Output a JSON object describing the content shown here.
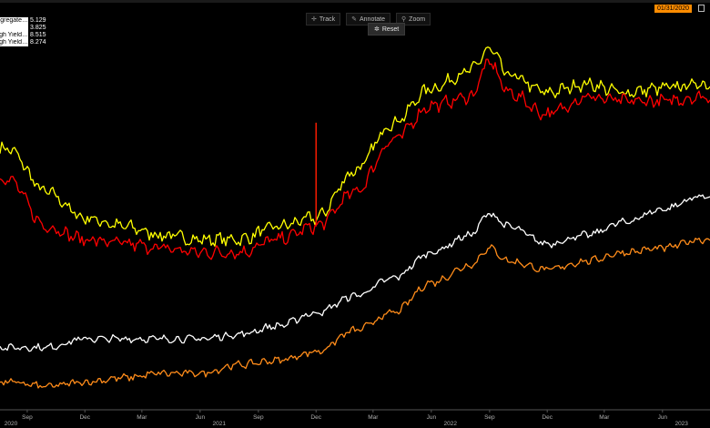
{
  "toolbar": {
    "track_label": "Track",
    "annotate_label": "Annotate",
    "zoom_label": "Zoom",
    "reset_label": "Reset",
    "track_icon": "crosshair-icon",
    "annotate_icon": "pencil-icon",
    "zoom_icon": "magnifier-icon",
    "reset_icon": "gear-icon"
  },
  "date_range": "01/31/2020",
  "legend": [
    {
      "name": "…ggregate",
      "value": "5.129",
      "color": "#ffffff"
    },
    {
      "name": "",
      "value": "3.825",
      "color": "#ffffff"
    },
    {
      "name": "…High Yield",
      "value": "8.515",
      "color": "#ffffff"
    },
    {
      "name": "…High Yield",
      "value": "8.274",
      "color": "#ffffff"
    }
  ],
  "colors": {
    "background": "#000000",
    "yellow": "#ffff00",
    "red": "#ff0000",
    "white": "#ffffff",
    "orange": "#ff8c1a",
    "axis": "#555555",
    "tick_text": "#b0b0b0"
  },
  "chart_data": {
    "type": "line",
    "x_ticks": [
      "Sep",
      "Dec",
      "Mar",
      "Jun",
      "Sep",
      "Dec",
      "Mar",
      "Jun",
      "Sep",
      "Dec",
      "Mar",
      "Jun"
    ],
    "year_labels": [
      "2020",
      "2021",
      "2022",
      "2023"
    ],
    "x": [
      "2020-08",
      "2020-10",
      "2020-12",
      "2021-02",
      "2021-04",
      "2021-06",
      "2021-08",
      "2021-10",
      "2021-12",
      "2022-02",
      "2022-04",
      "2022-06",
      "2022-08",
      "2022-09",
      "2022-10",
      "2022-12",
      "2023-02",
      "2023-04",
      "2023-06",
      "2023-08"
    ],
    "ylim": [
      2.0,
      10.6
    ],
    "grid": false,
    "series": [
      {
        "color_key": "yellow",
        "values": [
          8.0,
          7.0,
          6.4,
          6.2,
          6.0,
          5.9,
          5.9,
          6.2,
          6.4,
          7.5,
          8.6,
          9.4,
          9.8,
          10.3,
          9.7,
          9.3,
          9.5,
          9.3,
          9.4,
          9.5
        ],
        "spikes": [
          {
            "x": "2021-12",
            "y": 8.6
          }
        ]
      },
      {
        "color_key": "red",
        "values": [
          7.3,
          6.2,
          5.9,
          5.8,
          5.7,
          5.6,
          5.6,
          5.9,
          6.2,
          7.0,
          8.2,
          9.0,
          9.2,
          10.0,
          9.3,
          8.8,
          9.2,
          9.1,
          9.1,
          9.2
        ],
        "spikes": [
          {
            "x": "2021-12",
            "y": 8.6
          }
        ]
      },
      {
        "color_key": "white",
        "values": [
          3.4,
          3.4,
          3.6,
          3.6,
          3.6,
          3.6,
          3.7,
          3.9,
          4.2,
          4.6,
          5.0,
          5.6,
          6.0,
          6.5,
          6.2,
          5.8,
          6.0,
          6.3,
          6.6,
          6.9
        ]
      },
      {
        "color_key": "orange",
        "values": [
          2.6,
          2.5,
          2.6,
          2.7,
          2.8,
          2.8,
          3.0,
          3.1,
          3.3,
          3.8,
          4.2,
          4.9,
          5.3,
          5.7,
          5.4,
          5.2,
          5.4,
          5.6,
          5.7,
          5.9
        ]
      }
    ]
  }
}
